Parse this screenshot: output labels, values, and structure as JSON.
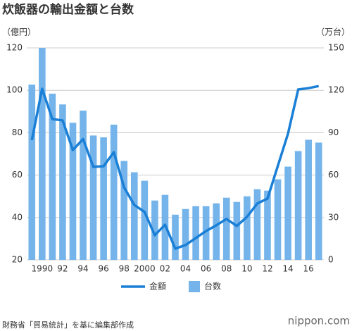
{
  "chart_data": {
    "type": "bar-line",
    "title": "炊飯器の輸出金額と台数",
    "y_label": "（億円）",
    "y2_label": "（万台）",
    "categories": [
      null,
      "1990",
      null,
      "92",
      null,
      "94",
      null,
      "96",
      null,
      "98",
      null,
      "2000",
      null,
      "02",
      null,
      "04",
      null,
      "06",
      null,
      "08",
      null,
      "10",
      null,
      "12",
      null,
      "14",
      null,
      "16",
      null
    ],
    "series": [
      {
        "name": "金額",
        "type": "line",
        "color": "#1a7fd6",
        "axis": "y",
        "values": [
          76.5,
          100.7,
          86.4,
          85.8,
          71.8,
          77,
          63.9,
          64.2,
          70.8,
          54.2,
          45.9,
          42.6,
          31.6,
          36.6,
          25.3,
          27,
          30.3,
          33.6,
          36.3,
          39.3,
          36,
          40.3,
          46.6,
          48.9,
          64.2,
          79.5,
          100.4,
          101,
          102
        ]
      },
      {
        "name": "台数",
        "type": "bar",
        "color": "#74b4ea",
        "axis": "y2",
        "values": [
          124,
          150,
          117.6,
          110,
          97,
          105.6,
          88,
          86.7,
          95.7,
          70,
          62,
          56,
          42,
          46,
          32,
          36,
          38,
          38,
          40,
          44,
          41,
          45,
          50,
          49,
          57,
          66,
          77,
          85,
          83
        ]
      }
    ],
    "ylim": [
      20,
      120
    ],
    "yticks": [
      20,
      40,
      60,
      80,
      100,
      120
    ],
    "y2lim": [
      0,
      150
    ],
    "y2ticks": [
      0,
      30,
      60,
      90,
      120,
      150
    ],
    "grid": true,
    "legend": "bottom"
  },
  "source": "財務省「貿易統計」を基に編集部作成",
  "brand": "nippon.com"
}
